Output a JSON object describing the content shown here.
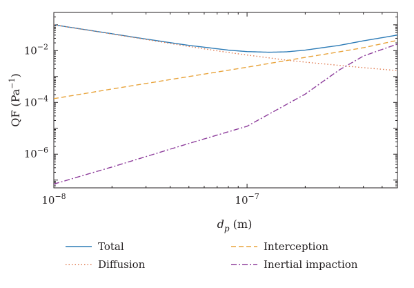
{
  "chart_data": {
    "type": "line",
    "title": "",
    "xlabel": "d_p (m)",
    "xlabel_main": "d",
    "xlabel_sub": "p",
    "xlabel_unit": " (m)",
    "ylabel": "QF (Pa^-1)",
    "ylabel_main": "QF (Pa",
    "ylabel_sup": "−1",
    "ylabel_close": ")",
    "xscale": "log",
    "yscale": "log",
    "xlim": [
      1e-08,
      6e-07
    ],
    "ylim": [
      5e-08,
      0.3
    ],
    "x_ticks": [
      {
        "value": 1e-08,
        "base": "10",
        "exp": "−8"
      },
      {
        "value": 1e-07,
        "base": "10",
        "exp": "−7"
      }
    ],
    "y_ticks": [
      {
        "value": 0.01,
        "base": "10",
        "exp": "−2"
      },
      {
        "value": 0.0001,
        "base": "10",
        "exp": "−4"
      },
      {
        "value": 1e-06,
        "base": "10",
        "exp": "−6"
      }
    ],
    "grid": false,
    "legend_position": "below",
    "series": [
      {
        "name": "Total",
        "color": "#2c7bb6",
        "dash": "solid",
        "x": [
          1e-08,
          2e-08,
          3e-08,
          5e-08,
          8e-08,
          1e-07,
          1.3e-07,
          1.6e-07,
          2e-07,
          3e-07,
          4e-07,
          6e-07
        ],
        "y": [
          0.1,
          0.045,
          0.028,
          0.016,
          0.0105,
          0.0092,
          0.0087,
          0.009,
          0.0105,
          0.016,
          0.024,
          0.04
        ]
      },
      {
        "name": "Diffusion",
        "color": "#e07b50",
        "dash": "dotted",
        "x": [
          1e-08,
          2e-08,
          3e-08,
          5e-08,
          8e-08,
          1e-07,
          1.6e-07,
          2e-07,
          3e-07,
          4e-07,
          6e-07
        ],
        "y": [
          0.1,
          0.044,
          0.027,
          0.0145,
          0.0085,
          0.0068,
          0.0043,
          0.0036,
          0.0027,
          0.0022,
          0.0017
        ]
      },
      {
        "name": "Interception",
        "color": "#e8a33a",
        "dash": "dashed",
        "x": [
          1e-08,
          2e-08,
          5e-08,
          1e-07,
          2e-07,
          3e-07,
          4e-07,
          6e-07
        ],
        "y": [
          0.00014,
          0.00033,
          0.001,
          0.0023,
          0.0055,
          0.009,
          0.013,
          0.025
        ]
      },
      {
        "name": "Inertial impaction",
        "color": "#8e3e9c",
        "dash": "dashdot",
        "x": [
          1e-08,
          2e-08,
          5e-08,
          1e-07,
          2e-07,
          3e-07,
          4e-07,
          6e-07
        ],
        "y": [
          7e-08,
          3.2e-07,
          2.6e-06,
          1.2e-05,
          0.00021,
          0.0018,
          0.0062,
          0.018
        ]
      }
    ]
  }
}
